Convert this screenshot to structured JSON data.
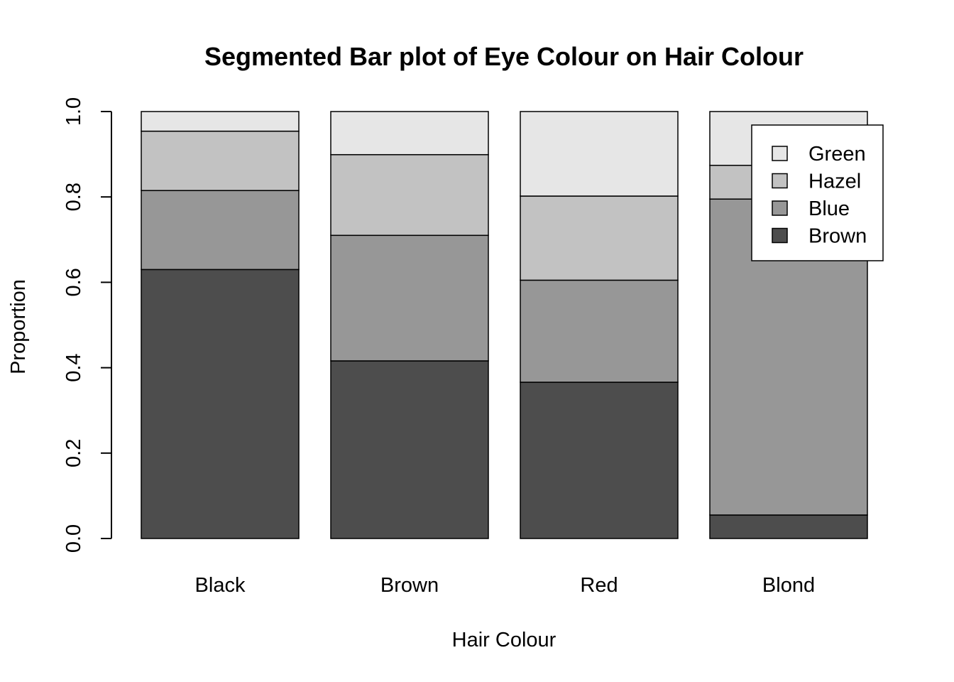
{
  "chart_data": {
    "type": "bar",
    "stacked": true,
    "title": "Segmented Bar plot of Eye Colour on Hair Colour",
    "xlabel": "Hair Colour",
    "ylabel": "Proportion",
    "ylim": [
      0,
      1
    ],
    "yticks": [
      "0.0",
      "0.2",
      "0.4",
      "0.6",
      "0.8",
      "1.0"
    ],
    "categories": [
      "Black",
      "Brown",
      "Red",
      "Blond"
    ],
    "series": [
      {
        "name": "Brown",
        "color": "#4d4d4d",
        "values": [
          0.63,
          0.416,
          0.366,
          0.055
        ]
      },
      {
        "name": "Blue",
        "color": "#979797",
        "values": [
          0.185,
          0.294,
          0.239,
          0.74
        ]
      },
      {
        "name": "Hazel",
        "color": "#c2c2c2",
        "values": [
          0.139,
          0.189,
          0.197,
          0.079
        ]
      },
      {
        "name": "Green",
        "color": "#e6e6e6",
        "values": [
          0.046,
          0.101,
          0.198,
          0.126
        ]
      }
    ],
    "legend": {
      "position": "top-right",
      "order": [
        "Green",
        "Hazel",
        "Blue",
        "Brown"
      ]
    },
    "grid": false
  }
}
